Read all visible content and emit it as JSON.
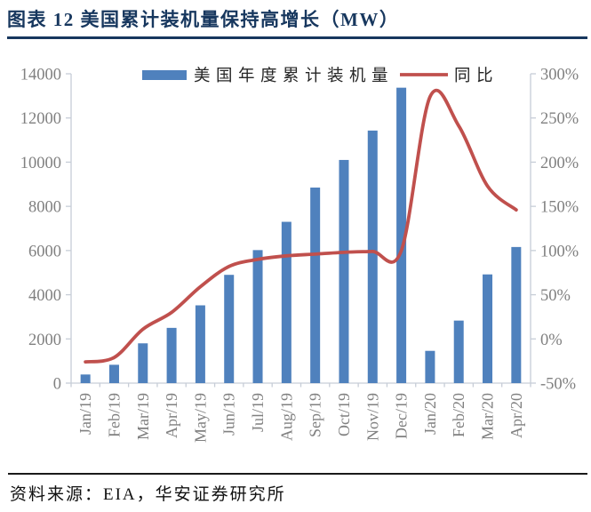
{
  "header": {
    "title": "图表 12 美国累计装机量保持高增长（MW）"
  },
  "footer": {
    "source": "资料来源：EIA，华安证券研究所"
  },
  "colors": {
    "bar": "#4F81BD",
    "line": "#C0504D",
    "title": "#17375E",
    "title_underline": "#17375E",
    "axis": "#C7CDD7",
    "tick_label": "#808080",
    "legend_text": "#262626",
    "footer_divider": "#1A1A1A",
    "source_text": "#111111",
    "background": "#FFFFFF"
  },
  "chart_data": {
    "type": "combo",
    "title": "图表 12 美国累计装机量保持高增长（MW）",
    "categories": [
      "Jan/19",
      "Feb/19",
      "Mar/19",
      "Apr/19",
      "May/19",
      "Jun/19",
      "Jul/19",
      "Aug/19",
      "Sep/19",
      "Oct/19",
      "Nov/19",
      "Dec/19",
      "Jan/20",
      "Feb/20",
      "Mar/20",
      "Apr/20"
    ],
    "series": [
      {
        "name": "美国年度累计装机量",
        "type": "bar",
        "axis": "left",
        "unit": "MW",
        "color": "#4F81BD",
        "values": [
          390,
          830,
          1800,
          2500,
          3520,
          4900,
          6020,
          7300,
          8850,
          10100,
          11430,
          13370,
          1460,
          2830,
          4920,
          6160
        ]
      },
      {
        "name": "同比",
        "type": "line",
        "axis": "right",
        "unit": "%",
        "color": "#C0504D",
        "values": [
          -26,
          -21,
          11,
          30,
          59,
          82,
          90,
          94,
          96,
          98,
          99,
          100,
          274,
          241,
          173,
          146
        ]
      }
    ],
    "left_axis": {
      "min": 0,
      "max": 14000,
      "step": 2000,
      "tick_labels": [
        "0",
        "2000",
        "4000",
        "6000",
        "8000",
        "10000",
        "12000",
        "14000"
      ]
    },
    "right_axis": {
      "min": -50,
      "max": 300,
      "step": 50,
      "tick_labels": [
        "-50%",
        "0%",
        "50%",
        "100%",
        "150%",
        "200%",
        "250%",
        "300%"
      ]
    },
    "grid": false,
    "legend_position": "top-center",
    "smooth_line": true
  }
}
